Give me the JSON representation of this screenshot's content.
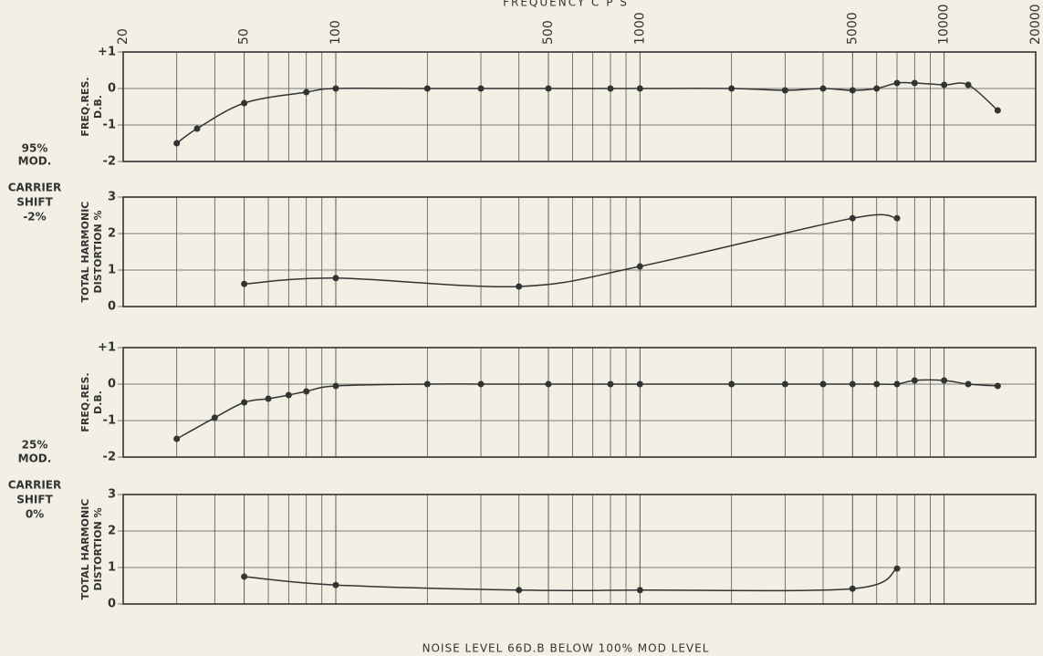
{
  "title": "FREQUENCY C P S",
  "footer": "NOISE LEVEL 66D.B BELOW 100% MOD LEVEL",
  "side_labels": [
    [
      "95%",
      "MOD."
    ],
    [
      "CARRIER",
      "SHIFT",
      "-2%"
    ],
    [
      "25%",
      "MOD."
    ],
    [
      "CARRIER",
      "SHIFT",
      "0%"
    ]
  ],
  "chart_data": [
    {
      "type": "scatter",
      "xscale": "log",
      "grid": true,
      "color": "#333333",
      "ylabel": [
        "FREQ.RES.",
        "D.B."
      ],
      "xlim": [
        20,
        20000
      ],
      "xticks": [
        20,
        50,
        100,
        500,
        1000,
        5000,
        10000,
        20000
      ],
      "ylim": [
        -2,
        1
      ],
      "yticks": [
        -2,
        -1,
        0,
        {
          "value": 1,
          "label": "+1"
        }
      ],
      "x": [
        30,
        35,
        50,
        80,
        100,
        200,
        300,
        500,
        800,
        1000,
        2000,
        3000,
        4000,
        5000,
        6000,
        7000,
        8000,
        10000,
        12000,
        15000
      ],
      "values": [
        -1.5,
        -1.1,
        -0.4,
        -0.1,
        0,
        0,
        0,
        0,
        0,
        0,
        0,
        -0.05,
        0,
        -0.05,
        0,
        0.15,
        0.15,
        0.1,
        0.1,
        -0.6
      ]
    },
    {
      "type": "scatter",
      "xscale": "log",
      "grid": true,
      "color": "#333333",
      "ylabel": [
        "TOTAL HARMONIC",
        "DISTORTION %"
      ],
      "xlim": [
        20,
        20000
      ],
      "ylim": [
        0,
        3
      ],
      "yticks": [
        0,
        1,
        2,
        3
      ],
      "x": [
        50,
        100,
        400,
        1000,
        5000,
        7000
      ],
      "values": [
        0.62,
        0.78,
        0.55,
        1.1,
        2.42,
        2.42
      ]
    },
    {
      "type": "scatter",
      "xscale": "log",
      "grid": true,
      "color": "#333333",
      "ylabel": [
        "FREQ.RES.",
        "D.B."
      ],
      "xlim": [
        20,
        20000
      ],
      "ylim": [
        -2,
        1
      ],
      "yticks": [
        -2,
        -1,
        0,
        {
          "value": 1,
          "label": "+1"
        }
      ],
      "x": [
        30,
        40,
        50,
        60,
        70,
        80,
        100,
        200,
        300,
        500,
        800,
        1000,
        2000,
        3000,
        4000,
        5000,
        6000,
        7000,
        8000,
        10000,
        12000,
        15000
      ],
      "values": [
        -1.5,
        -0.92,
        -0.5,
        -0.4,
        -0.3,
        -0.2,
        -0.05,
        0,
        0,
        0,
        0,
        0,
        0,
        0,
        0,
        0,
        0,
        0,
        0.1,
        0.1,
        0,
        -0.05
      ]
    },
    {
      "type": "scatter",
      "xscale": "log",
      "grid": true,
      "color": "#333333",
      "ylabel": [
        "TOTAL HARMONIC",
        "DISTORTION %"
      ],
      "xlim": [
        20,
        20000
      ],
      "ylim": [
        0,
        3
      ],
      "yticks": [
        0,
        1,
        2,
        3
      ],
      "x": [
        50,
        100,
        400,
        1000,
        5000,
        7000
      ],
      "values": [
        0.75,
        0.52,
        0.38,
        0.38,
        0.42,
        0.97
      ]
    }
  ]
}
